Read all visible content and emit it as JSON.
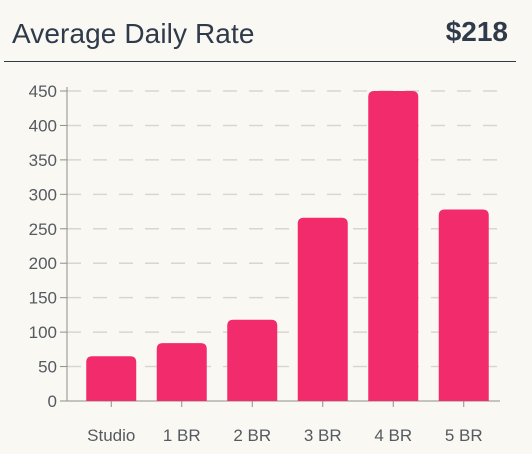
{
  "header": {
    "title": "Average Daily Rate",
    "value": "$218"
  },
  "colors": {
    "bar": "#f22b6c",
    "grid": "#d9d6d0",
    "axis": "#8e8e8e",
    "text": "#555a60"
  },
  "chart_data": {
    "type": "bar",
    "categories": [
      "Studio",
      "1 BR",
      "2 BR",
      "3 BR",
      "4 BR",
      "5 BR"
    ],
    "values": [
      65,
      84,
      118,
      266,
      450,
      278
    ],
    "ylim": [
      0,
      450
    ],
    "yticks": [
      0,
      50,
      100,
      150,
      200,
      250,
      300,
      350,
      400,
      450
    ],
    "grid": true
  }
}
